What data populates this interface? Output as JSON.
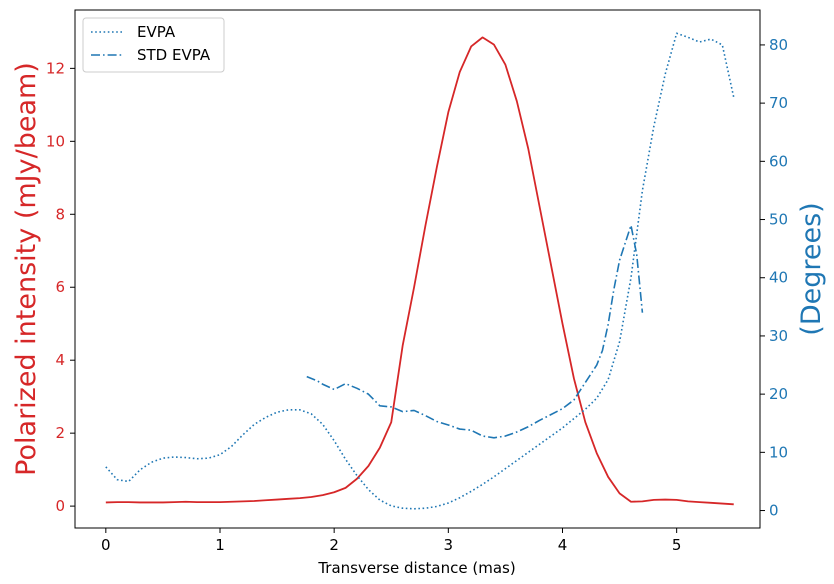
{
  "colors": {
    "left_axis": "#d62728",
    "right_axis": "#1f77b4",
    "intensity_line": "#d62728",
    "evpa_line": "#1f77b4",
    "std_line": "#1f77b4"
  },
  "chart_data": {
    "type": "line",
    "title": "",
    "xlabel": "Transverse distance (mas)",
    "ylabel_left": "Polarized intensity (mJy/beam)",
    "ylabel_right": "(Degrees)",
    "xlim": [
      -0.27,
      5.73
    ],
    "ylim_left": [
      -0.6,
      13.6
    ],
    "ylim_right": [
      -3,
      86
    ],
    "x_ticks": [
      0,
      1,
      2,
      3,
      4,
      5
    ],
    "y_left_ticks": [
      0,
      2,
      4,
      6,
      8,
      10,
      12
    ],
    "y_right_ticks": [
      0,
      10,
      20,
      30,
      40,
      50,
      60,
      70,
      80
    ],
    "legend": {
      "position": "top-left",
      "entries": [
        "EVPA",
        "STD EVPA"
      ]
    },
    "grid": false,
    "series": [
      {
        "key": "intensity",
        "axis": "left",
        "style": "solid",
        "x": [
          0,
          0.1,
          0.2,
          0.3,
          0.4,
          0.5,
          0.6,
          0.7,
          0.8,
          0.9,
          1.0,
          1.1,
          1.2,
          1.3,
          1.4,
          1.5,
          1.6,
          1.7,
          1.8,
          1.9,
          2.0,
          2.1,
          2.2,
          2.3,
          2.4,
          2.5,
          2.6,
          2.7,
          2.8,
          2.9,
          3.0,
          3.1,
          3.2,
          3.3,
          3.4,
          3.5,
          3.6,
          3.7,
          3.8,
          3.9,
          4.0,
          4.1,
          4.2,
          4.3,
          4.4,
          4.5,
          4.6,
          4.7,
          4.8,
          4.9,
          5.0,
          5.1,
          5.2,
          5.3,
          5.4,
          5.5
        ],
        "y": [
          0.1,
          0.11,
          0.11,
          0.1,
          0.1,
          0.1,
          0.11,
          0.12,
          0.11,
          0.11,
          0.11,
          0.12,
          0.13,
          0.14,
          0.16,
          0.18,
          0.2,
          0.22,
          0.25,
          0.3,
          0.38,
          0.5,
          0.75,
          1.1,
          1.6,
          2.3,
          4.4,
          6.0,
          7.7,
          9.3,
          10.8,
          11.9,
          12.6,
          12.85,
          12.65,
          12.1,
          11.1,
          9.8,
          8.2,
          6.6,
          5.0,
          3.5,
          2.3,
          1.45,
          0.8,
          0.35,
          0.12,
          0.13,
          0.17,
          0.18,
          0.17,
          0.13,
          0.11,
          0.09,
          0.07,
          0.05
        ]
      },
      {
        "key": "evpa",
        "name": "EVPA",
        "axis": "right",
        "style": "dotted",
        "x": [
          0,
          0.1,
          0.2,
          0.3,
          0.4,
          0.5,
          0.6,
          0.7,
          0.8,
          0.9,
          1.0,
          1.1,
          1.2,
          1.3,
          1.4,
          1.5,
          1.6,
          1.7,
          1.8,
          1.9,
          2.0,
          2.1,
          2.2,
          2.3,
          2.4,
          2.5,
          2.6,
          2.7,
          2.8,
          2.9,
          3.0,
          3.1,
          3.2,
          3.3,
          3.4,
          3.5,
          3.6,
          3.7,
          3.8,
          3.9,
          4.0,
          4.1,
          4.2,
          4.3,
          4.4,
          4.5,
          4.6,
          4.7,
          4.8,
          4.9,
          5.0,
          5.1,
          5.2,
          5.3,
          5.4,
          5.5
        ],
        "y": [
          7.5,
          5.3,
          5.0,
          7.0,
          8.3,
          9.0,
          9.2,
          9.1,
          8.9,
          9.0,
          9.6,
          11.0,
          13.0,
          14.8,
          16.0,
          16.9,
          17.3,
          17.3,
          16.6,
          14.8,
          12.0,
          8.8,
          6.0,
          3.6,
          1.8,
          0.8,
          0.4,
          0.3,
          0.4,
          0.7,
          1.3,
          2.2,
          3.3,
          4.5,
          5.8,
          7.2,
          8.6,
          10.0,
          11.4,
          12.8,
          14.2,
          15.8,
          17.4,
          19.3,
          22.5,
          29.0,
          40.0,
          55.0,
          66.0,
          75.0,
          82.0,
          81.3,
          80.5,
          81.0,
          80.0,
          71.0
        ]
      },
      {
        "key": "std_evpa",
        "name": "STD EVPA",
        "axis": "right",
        "style": "dashdot",
        "x": [
          1.76,
          1.85,
          1.9,
          2.0,
          2.1,
          2.2,
          2.3,
          2.4,
          2.5,
          2.6,
          2.7,
          2.8,
          2.9,
          3.0,
          3.1,
          3.2,
          3.3,
          3.4,
          3.5,
          3.6,
          3.7,
          3.8,
          3.9,
          4.0,
          4.1,
          4.2,
          4.3,
          4.35,
          4.4,
          4.45,
          4.5,
          4.6,
          4.65,
          4.7
        ],
        "y": [
          23.0,
          22.3,
          21.7,
          20.8,
          21.8,
          21.0,
          20.0,
          18.0,
          17.8,
          17.0,
          17.2,
          16.3,
          15.3,
          14.7,
          14.0,
          13.8,
          12.8,
          12.5,
          12.8,
          13.5,
          14.4,
          15.5,
          16.5,
          17.5,
          19.0,
          22.0,
          25.0,
          27.5,
          32.0,
          38.0,
          43.0,
          49.0,
          44.0,
          34.0
        ]
      }
    ]
  }
}
